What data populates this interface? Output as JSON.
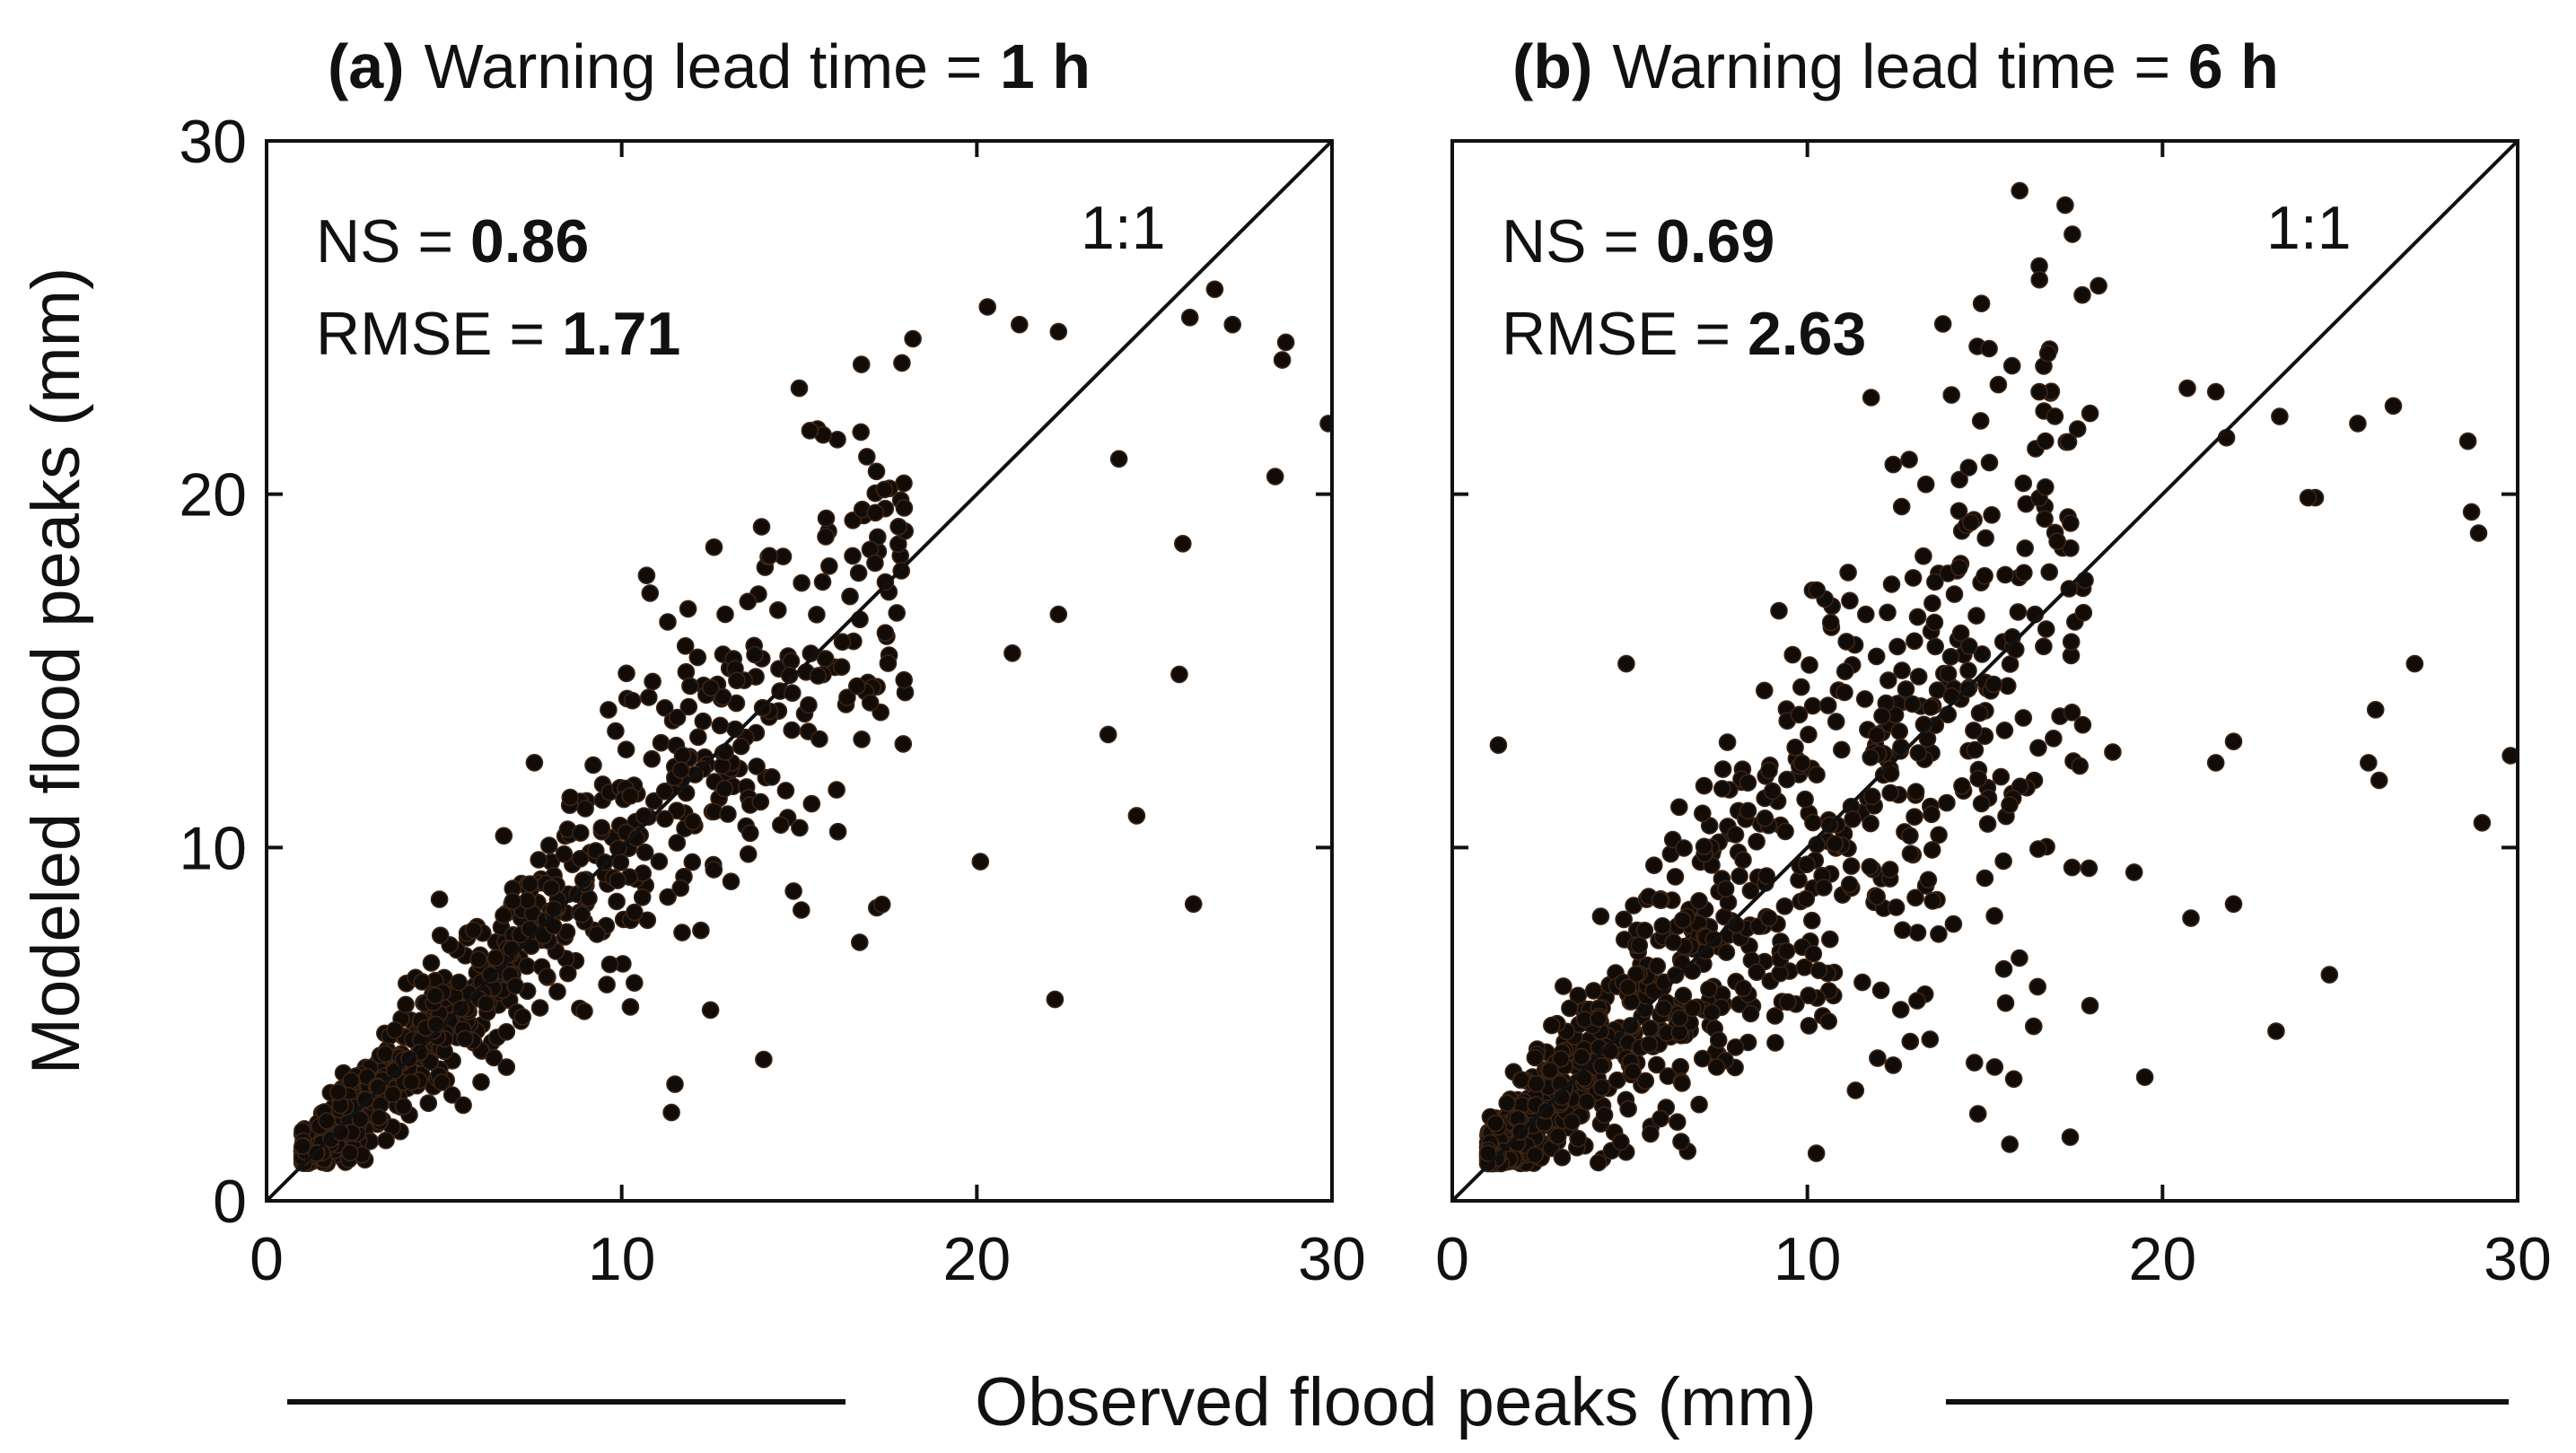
{
  "figure": {
    "ylabel": "Modeled flood peaks (mm)",
    "xlabel": "Observed flood peaks (mm)"
  },
  "colors": {
    "points": "#120c08",
    "point_edge": "#3a2414",
    "axis": "#111111"
  },
  "chart_data": [
    {
      "type": "scatter",
      "panel_label": "(a)",
      "title": "Warning lead time = ",
      "title_value": "1 h",
      "xlim": [
        0,
        30
      ],
      "ylim": [
        0,
        30
      ],
      "xticks": [
        "0",
        "10",
        "20",
        "30"
      ],
      "yticks": [
        "0",
        "10",
        "20",
        "30"
      ],
      "reference_line": "1:1",
      "metrics": [
        {
          "label": "NS = ",
          "value": "0.86"
        },
        {
          "label": "RMSE = ",
          "value": "1.71"
        }
      ],
      "notable_points": [
        [
          10.7,
          17.7
        ],
        [
          10.8,
          17.2
        ],
        [
          12.6,
          18.5
        ],
        [
          15.0,
          23.0
        ],
        [
          15.3,
          21.8
        ],
        [
          18.2,
          24.4
        ],
        [
          20.3,
          25.3
        ],
        [
          21.2,
          24.8
        ],
        [
          22.3,
          24.6
        ],
        [
          26.7,
          25.8
        ],
        [
          26.0,
          25.0
        ],
        [
          27.2,
          24.8
        ],
        [
          28.7,
          24.3
        ],
        [
          28.6,
          23.8
        ],
        [
          28.4,
          20.5
        ],
        [
          29.9,
          22.0
        ],
        [
          24.5,
          10.9
        ],
        [
          26.1,
          8.4
        ],
        [
          22.2,
          5.7
        ],
        [
          20.1,
          9.6
        ],
        [
          14.0,
          4.0
        ],
        [
          11.5,
          3.3
        ],
        [
          11.4,
          2.5
        ],
        [
          12.5,
          5.4
        ],
        [
          23.7,
          13.2
        ],
        [
          25.7,
          14.9
        ],
        [
          25.8,
          18.6
        ],
        [
          24.0,
          21.0
        ],
        [
          22.3,
          16.6
        ],
        [
          21.0,
          15.5
        ]
      ],
      "generated_cloud": {
        "n": 900,
        "seed": 11,
        "spread": 0.19
      }
    },
    {
      "type": "scatter",
      "panel_label": "(b)",
      "title": "Warning lead time = ",
      "title_value": "6 h",
      "xlim": [
        0,
        30
      ],
      "ylim": [
        0,
        30
      ],
      "xticks": [
        "0",
        "10",
        "20",
        "30"
      ],
      "yticks": [
        "0",
        "10",
        "20",
        "30"
      ],
      "reference_line": "1:1",
      "metrics": [
        {
          "label": "NS = ",
          "value": "0.69"
        },
        {
          "label": "RMSE = ",
          "value": "2.63"
        }
      ],
      "notable_points": [
        [
          18.2,
          25.9
        ],
        [
          20.7,
          23.0
        ],
        [
          21.5,
          22.9
        ],
        [
          21.8,
          21.6
        ],
        [
          23.3,
          22.2
        ],
        [
          24.3,
          19.9
        ],
        [
          24.1,
          19.9
        ],
        [
          26.5,
          22.5
        ],
        [
          25.5,
          22.0
        ],
        [
          28.6,
          21.5
        ],
        [
          28.7,
          19.5
        ],
        [
          28.9,
          18.9
        ],
        [
          29.8,
          12.6
        ],
        [
          29.0,
          10.7
        ],
        [
          27.1,
          15.2
        ],
        [
          26.0,
          13.9
        ],
        [
          26.1,
          11.9
        ],
        [
          25.8,
          12.4
        ],
        [
          24.7,
          6.4
        ],
        [
          23.2,
          4.8
        ],
        [
          19.5,
          3.5
        ],
        [
          17.4,
          1.8
        ],
        [
          15.7,
          1.6
        ],
        [
          20.8,
          8.0
        ],
        [
          22.0,
          8.4
        ],
        [
          4.9,
          15.2
        ],
        [
          1.3,
          12.9
        ],
        [
          9.2,
          16.7
        ],
        [
          16.7,
          20.2
        ],
        [
          14.6,
          19.2
        ],
        [
          18.6,
          12.7
        ],
        [
          19.2,
          9.3
        ],
        [
          21.5,
          12.4
        ],
        [
          22.0,
          13.0
        ]
      ],
      "generated_cloud": {
        "n": 1100,
        "seed": 29,
        "spread": 0.33
      }
    }
  ]
}
